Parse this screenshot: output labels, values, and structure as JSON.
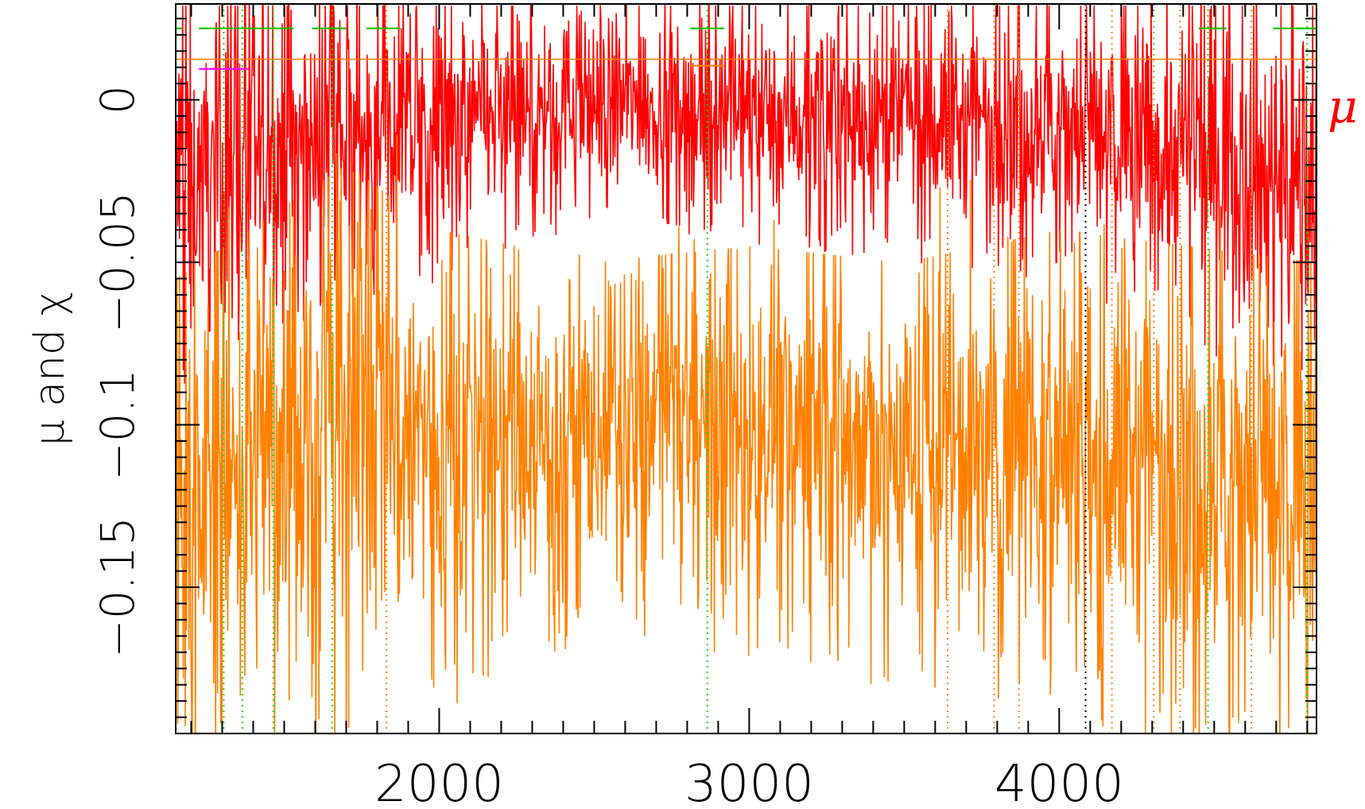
{
  "chart_data": {
    "type": "line",
    "title": "",
    "xlabel": "",
    "ylabel": "μ and χ",
    "xlim": [
      1150,
      4830
    ],
    "ylim": [
      -0.195,
      0.0295
    ],
    "x_ticks": [
      2000,
      3000,
      4000
    ],
    "x_tick_labels": [
      "2000",
      "3000",
      "4000"
    ],
    "y_ticks": [
      0,
      -0.05,
      -0.1,
      -0.15
    ],
    "y_tick_labels": [
      "0",
      "−0.05",
      "−0.1",
      "−0.15"
    ],
    "grid": false,
    "series": [
      {
        "name": "μ",
        "color": "#ff0000",
        "legend_label": "μ",
        "x_range": [
          1150,
          4830
        ],
        "envelope": [
          {
            "x": 1150,
            "low": -0.08,
            "high": 0.029
          },
          {
            "x": 1600,
            "low": -0.055,
            "high": 0.029
          },
          {
            "x": 2000,
            "low": -0.045,
            "high": 0.029
          },
          {
            "x": 2500,
            "low": -0.03,
            "high": 0.029
          },
          {
            "x": 3000,
            "low": -0.035,
            "high": 0.029
          },
          {
            "x": 3500,
            "low": -0.04,
            "high": 0.029
          },
          {
            "x": 4000,
            "low": -0.045,
            "high": 0.029
          },
          {
            "x": 4830,
            "low": -0.08,
            "high": 0.029
          }
        ]
      },
      {
        "name": "χ",
        "color": "#ff8000",
        "x_range": [
          1150,
          4830
        ],
        "envelope": [
          {
            "x": 1150,
            "low": -0.195,
            "high": -0.055
          },
          {
            "x": 1700,
            "low": -0.175,
            "high": -0.02
          },
          {
            "x": 2000,
            "low": -0.17,
            "high": -0.04
          },
          {
            "x": 2500,
            "low": -0.15,
            "high": -0.05
          },
          {
            "x": 3000,
            "low": -0.155,
            "high": -0.045
          },
          {
            "x": 3500,
            "low": -0.165,
            "high": -0.05
          },
          {
            "x": 4000,
            "low": -0.17,
            "high": -0.04
          },
          {
            "x": 4830,
            "low": -0.195,
            "high": -0.05
          }
        ]
      }
    ],
    "reference_lines": {
      "horizontal": [
        {
          "y": 0.0125,
          "color": "#ff8000"
        }
      ],
      "vertical_dotted": [
        {
          "x": 1305,
          "color": "#00e000"
        },
        {
          "x": 1365,
          "color": "#00e000"
        },
        {
          "x": 1465,
          "color": "#00e000"
        },
        {
          "x": 1655,
          "color": "#00e000"
        },
        {
          "x": 1830,
          "color": "#ff8000"
        },
        {
          "x": 2865,
          "color": "#00e000"
        },
        {
          "x": 3640,
          "color": "#ff8000"
        },
        {
          "x": 3790,
          "color": "#ff8000"
        },
        {
          "x": 3870,
          "color": "#ff8000"
        },
        {
          "x": 4085,
          "color": "#000000"
        },
        {
          "x": 4170,
          "color": "#ff8000"
        },
        {
          "x": 4305,
          "color": "#ff8000"
        },
        {
          "x": 4390,
          "color": "#ff8000"
        },
        {
          "x": 4480,
          "color": "#00e000"
        },
        {
          "x": 4620,
          "color": "#ff8000"
        },
        {
          "x": 4800,
          "color": "#00e000"
        }
      ]
    },
    "segment_markers": [
      {
        "x0": 1150,
        "x1": 1170,
        "y": 0.022,
        "color": "#00c000"
      },
      {
        "x0": 1225,
        "x1": 1335,
        "y": 0.022,
        "color": "#00c000"
      },
      {
        "x0": 1340,
        "x1": 1530,
        "y": 0.022,
        "color": "#00c000"
      },
      {
        "x0": 1590,
        "x1": 1700,
        "y": 0.022,
        "color": "#00c000"
      },
      {
        "x0": 1765,
        "x1": 1875,
        "y": 0.022,
        "color": "#00c000"
      },
      {
        "x0": 2810,
        "x1": 2920,
        "y": 0.022,
        "color": "#00c000"
      },
      {
        "x0": 4450,
        "x1": 4540,
        "y": 0.022,
        "color": "#00c000"
      },
      {
        "x0": 4690,
        "x1": 4830,
        "y": 0.022,
        "color": "#00c000"
      },
      {
        "x0": 1225,
        "x1": 1385,
        "y": 0.0095,
        "color": "#ff00ff"
      },
      {
        "x0": 2810,
        "x1": 2920,
        "y": 0.0105,
        "color": "#ff8000"
      }
    ]
  }
}
